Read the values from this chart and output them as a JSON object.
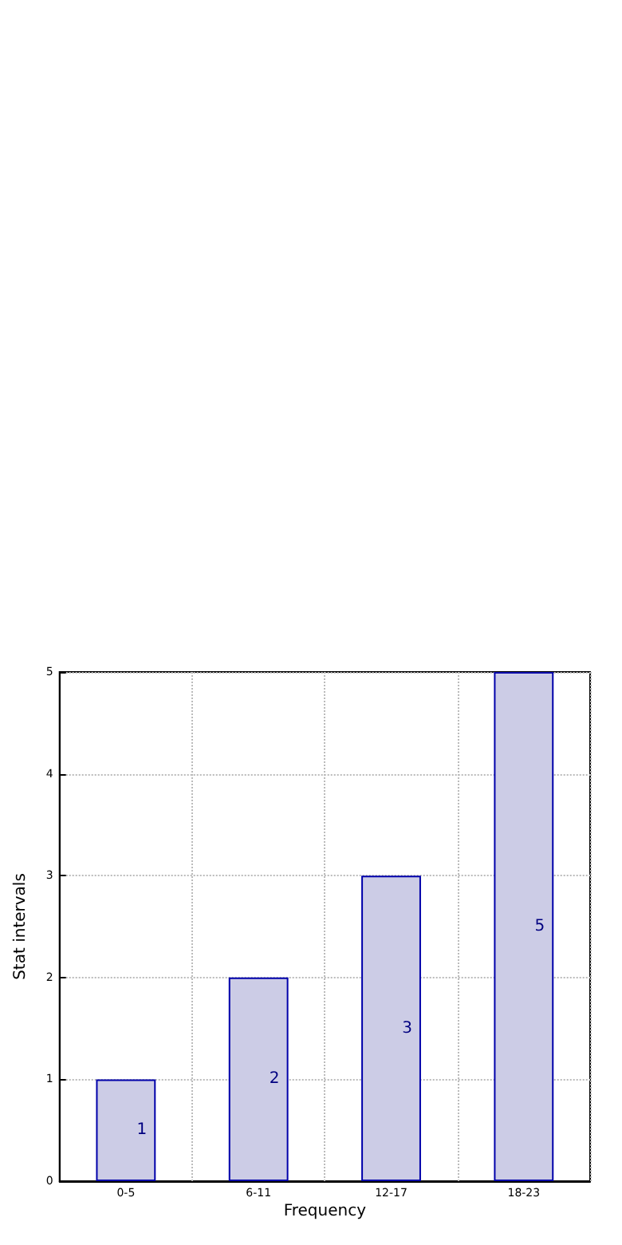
{
  "chart_data": {
    "type": "bar",
    "categories": [
      "0-5",
      "6-11",
      "12-17",
      "18-23"
    ],
    "values": [
      1,
      2,
      3,
      5
    ],
    "color": "#cccce6",
    "xlabel": "Frequency",
    "ylabel": "Stat intervals",
    "ylim": [
      0,
      5
    ],
    "yticks": [
      0,
      1,
      2,
      3,
      4,
      5
    ],
    "grid": true,
    "data_labels": true
  }
}
